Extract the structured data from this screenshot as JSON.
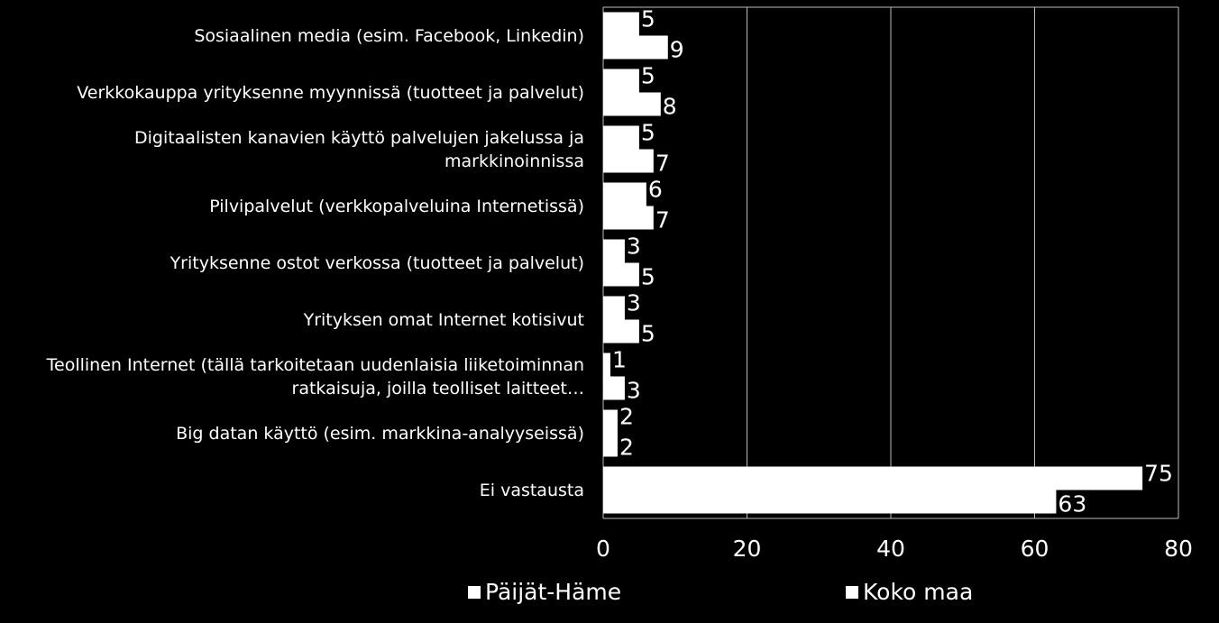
{
  "chart_data": {
    "type": "bar",
    "orientation": "horizontal",
    "categories": [
      "Sosiaalinen media (esim. Facebook, Linkedin)",
      "Verkkokauppa yrityksenne myynnissä (tuotteet ja palvelut)",
      "Digitaalisten kanavien käyttö palvelujen jakelussa ja markkinoinnissa",
      "Pilvipalvelut  (verkkopalveluina Internetissä)",
      "Yrityksenne ostot verkossa (tuotteet ja palvelut)",
      "Yrityksen omat Internet kotisivut",
      "Teollinen Internet (tällä tarkoitetaan uudenlaisia liiketoiminnan ratkaisuja, joilla teolliset laitteet…",
      "Big datan käyttö (esim. markkina-analyyseissä)",
      "Ei vastausta"
    ],
    "series": [
      {
        "name": "Päijät-Häme",
        "color": "#ffffff",
        "values": [
          5,
          5,
          5,
          6,
          3,
          3,
          1,
          2,
          75
        ]
      },
      {
        "name": "Koko maa",
        "color": "#ffffff",
        "values": [
          9,
          8,
          7,
          7,
          5,
          5,
          3,
          2,
          63
        ]
      }
    ],
    "xlim": [
      0,
      80
    ],
    "xticks": [
      0,
      20,
      40,
      60,
      80
    ],
    "grid": true
  }
}
